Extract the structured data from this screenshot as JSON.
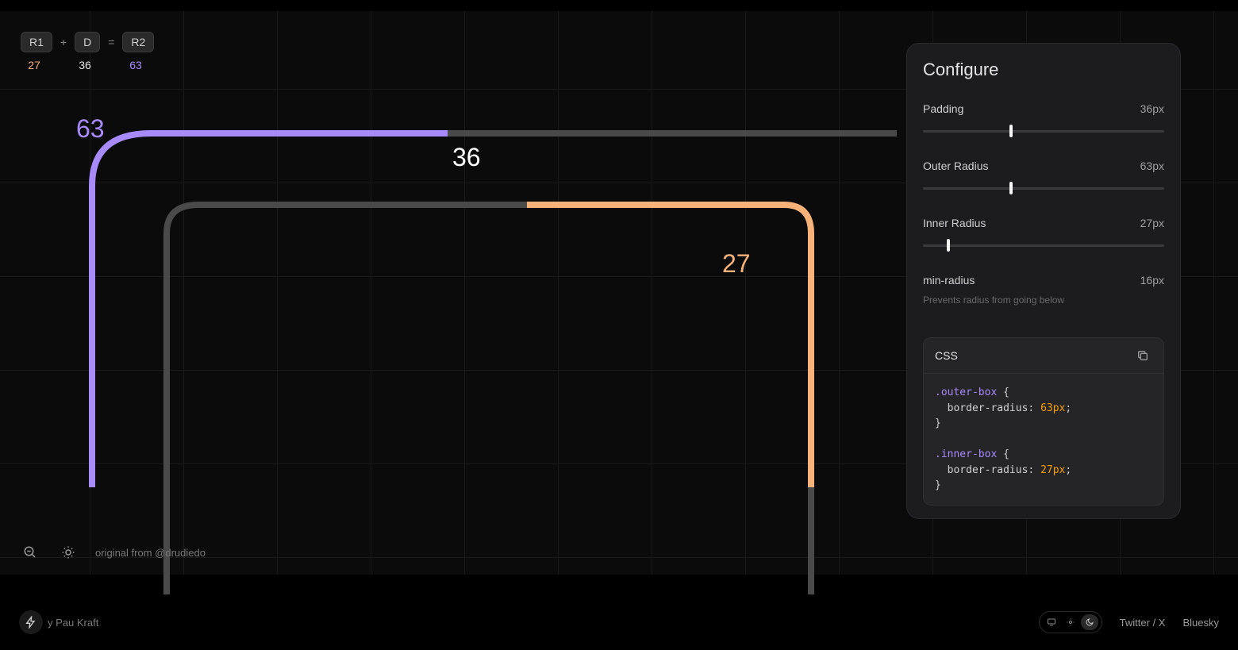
{
  "colors": {
    "bg": "#000000",
    "canvas": "#0b0b0b",
    "grid": "#1a1a1a",
    "panel": "#1c1c1f",
    "outer_curve": "#a78bfa",
    "inner_curve": "#f7b27a",
    "gray_curve": "#4a4a4a",
    "text": "#e5e5e5"
  },
  "formula": {
    "r1_label": "R1",
    "plus": "+",
    "d_label": "D",
    "equals": "=",
    "r2_label": "R2",
    "r1_value": "27",
    "d_value": "36",
    "r2_value": "63"
  },
  "diagram": {
    "outer_label": "63",
    "padding_label": "36",
    "inner_label": "27"
  },
  "bottom": {
    "credit": "original from @drudiedo"
  },
  "panel": {
    "title": "Configure",
    "controls": [
      {
        "name": "Padding",
        "value": "36px",
        "thumb_pct": 36
      },
      {
        "name": "Outer Radius",
        "value": "63px",
        "thumb_pct": 36
      },
      {
        "name": "Inner Radius",
        "value": "27px",
        "thumb_pct": 10
      },
      {
        "name": "min-radius",
        "value": "16px",
        "sub": "Prevents radius from going below",
        "no_slider": true
      }
    ],
    "css": {
      "title": "CSS",
      "outer_sel": ".outer-box",
      "inner_sel": ".inner-box",
      "prop": "border-radius",
      "outer_val": "63px",
      "inner_val": "27px"
    }
  },
  "footer": {
    "byline": "y Pau Kraft",
    "links": {
      "twitter": "Twitter / X",
      "bluesky": "Bluesky"
    }
  }
}
